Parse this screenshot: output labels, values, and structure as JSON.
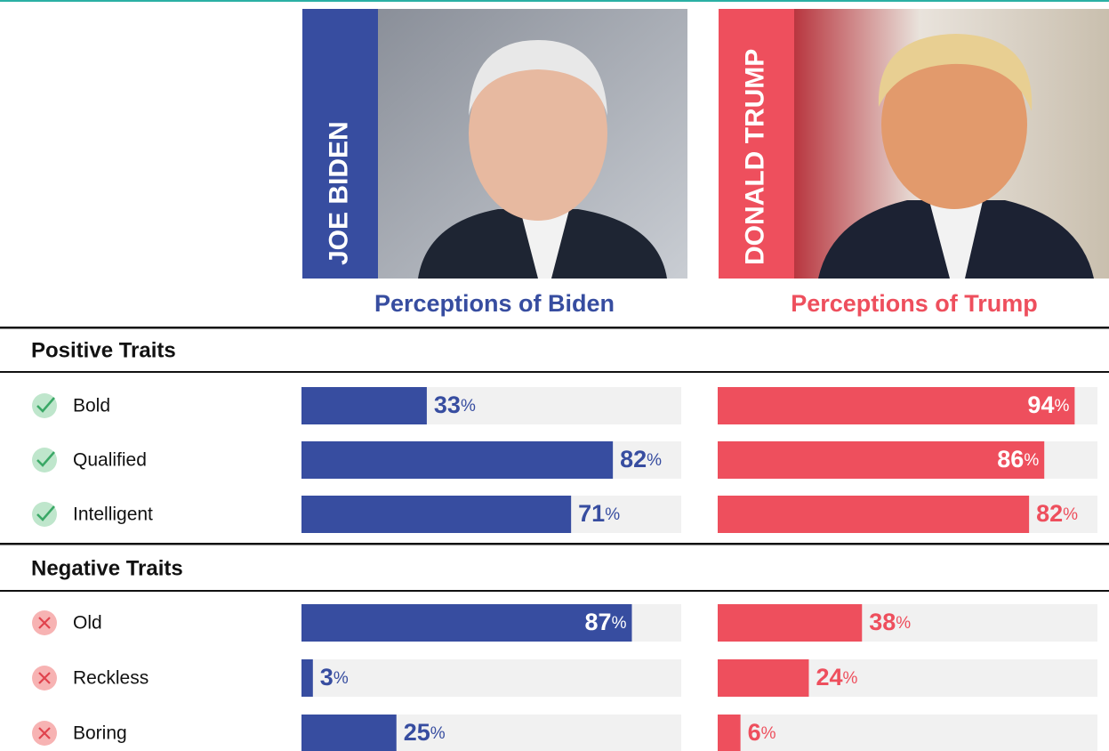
{
  "chart_data": {
    "type": "bar",
    "orientation": "horizontal",
    "xlim": [
      0,
      100
    ],
    "unit": "%",
    "series": [
      {
        "name": "JOE BIDEN",
        "title": "Perceptions of Biden",
        "color": "#374da0"
      },
      {
        "name": "DONALD TRUMP",
        "title": "Perceptions of Trump",
        "color": "#ee4f5d"
      }
    ],
    "panels": [
      {
        "name": "Positive Traits",
        "icon": "check",
        "categories": [
          "Bold",
          "Qualified",
          "Intelligent"
        ],
        "series": [
          {
            "values": [
              33,
              82,
              71
            ]
          },
          {
            "values": [
              94,
              86,
              82
            ]
          }
        ]
      },
      {
        "name": "Negative Traits",
        "icon": "cross",
        "categories": [
          "Old",
          "Reckless",
          "Boring"
        ],
        "series": [
          {
            "values": [
              87,
              3,
              25
            ]
          },
          {
            "values": [
              38,
              24,
              6
            ]
          }
        ]
      }
    ]
  }
}
